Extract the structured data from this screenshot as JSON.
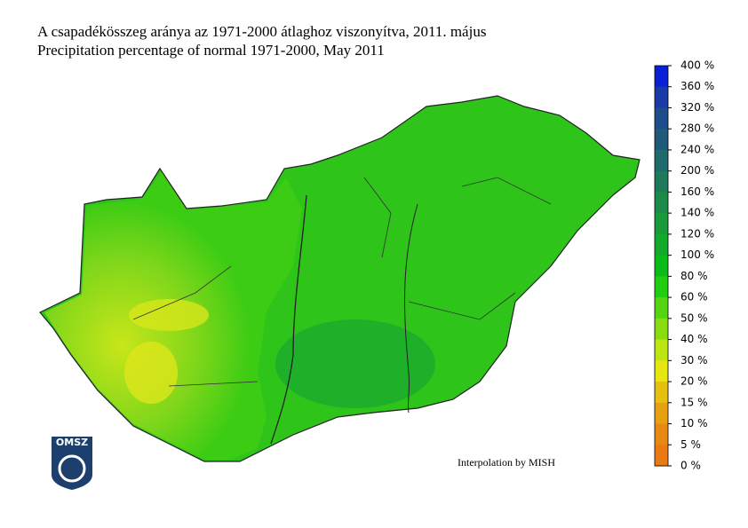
{
  "header": {
    "title": "A csapadékösszeg aránya az 1971-2000 átlaghoz viszonyítva, 2011. május",
    "subtitle": "Precipitation percentage of normal 1971-2000, May 2011"
  },
  "legend": {
    "labels": [
      "400 %",
      "360 %",
      "320 %",
      "280 %",
      "240 %",
      "200 %",
      "160 %",
      "140 %",
      "120 %",
      "100 %",
      "80 %",
      "60 %",
      "50 %",
      "40 %",
      "30 %",
      "20 %",
      "15 %",
      "10 %",
      "5 %",
      "0 %"
    ],
    "colors": [
      "#0a1fd6",
      "#1a3aa8",
      "#1e4d8c",
      "#1f5a7a",
      "#1f6a6a",
      "#1e7a5a",
      "#1e8a4a",
      "#1a9a3a",
      "#12aa2a",
      "#0bbb1a",
      "#22cc11",
      "#55d411",
      "#88dd11",
      "#bbe611",
      "#e6e611",
      "#e6c011",
      "#e6a011",
      "#e88a11",
      "#ec7a14"
    ]
  },
  "credit": "Interpolation by MISH",
  "logo": "OMSZ"
}
